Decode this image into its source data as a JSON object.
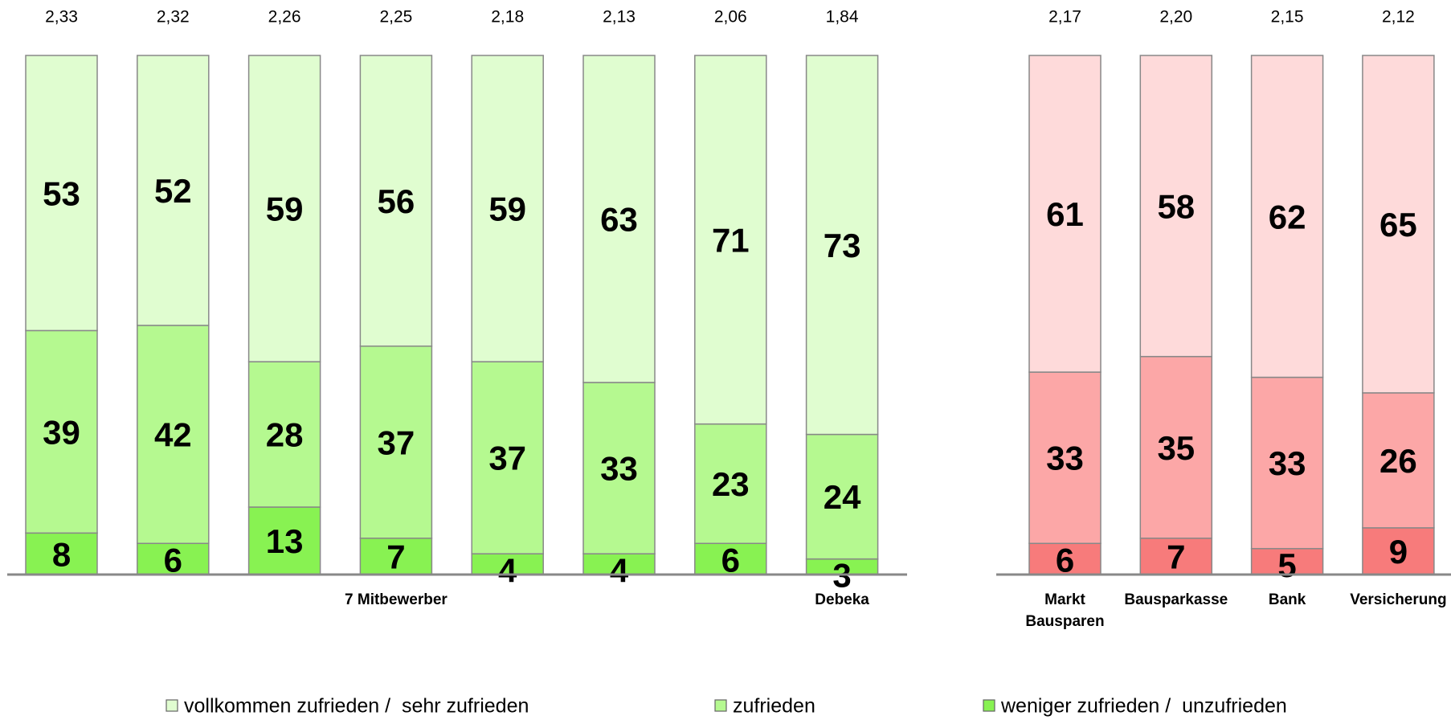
{
  "chart_data": [
    {
      "type": "stacked_bar",
      "ylim": [
        0,
        100
      ],
      "categories": [
        null,
        null,
        null,
        null,
        null,
        null,
        null,
        null
      ],
      "groups": [
        {
          "name": "7 Mitbewerber",
          "size": 7
        },
        {
          "name": "Debeka",
          "size": 1
        }
      ],
      "averages": {
        "values": [
          2.33,
          2.32,
          2.26,
          2.25,
          2.18,
          2.13,
          2.06,
          1.84
        ],
        "value_labels": [
          "2,33",
          "2,32",
          "2,26",
          "2,25",
          "2,18",
          "2,13",
          "2,06",
          "1,84"
        ]
      },
      "series": [
        {
          "name": "weniger zufrieden /  unzufrieden",
          "color": "#88f252",
          "values": [
            8,
            6,
            13,
            7,
            4,
            4,
            6,
            3
          ]
        },
        {
          "name": "zufrieden",
          "color": "#b5f990",
          "values": [
            39,
            42,
            28,
            37,
            37,
            33,
            23,
            24
          ]
        },
        {
          "name": "vollkommen zufrieden /  sehr zufrieden",
          "color": "#e0fdd0",
          "values": [
            53,
            52,
            59,
            56,
            59,
            63,
            71,
            73
          ]
        }
      ],
      "legend": "bottom"
    },
    {
      "type": "stacked_bar",
      "ylim": [
        0,
        100
      ],
      "categories": [
        "Markt Bausparen",
        "Bausparkasse",
        "Bank",
        "Versicherung"
      ],
      "averages": {
        "values": [
          2.17,
          2.2,
          2.15,
          2.12
        ],
        "value_labels": [
          "2,17",
          "2,20",
          "2,15",
          "2,12"
        ]
      },
      "series": [
        {
          "color": "#f77b7b",
          "values": [
            6,
            7,
            5,
            9
          ]
        },
        {
          "color": "#fca7a7",
          "values": [
            33,
            35,
            33,
            26
          ]
        },
        {
          "color": "#fedada",
          "values": [
            61,
            58,
            62,
            65
          ]
        }
      ]
    }
  ]
}
